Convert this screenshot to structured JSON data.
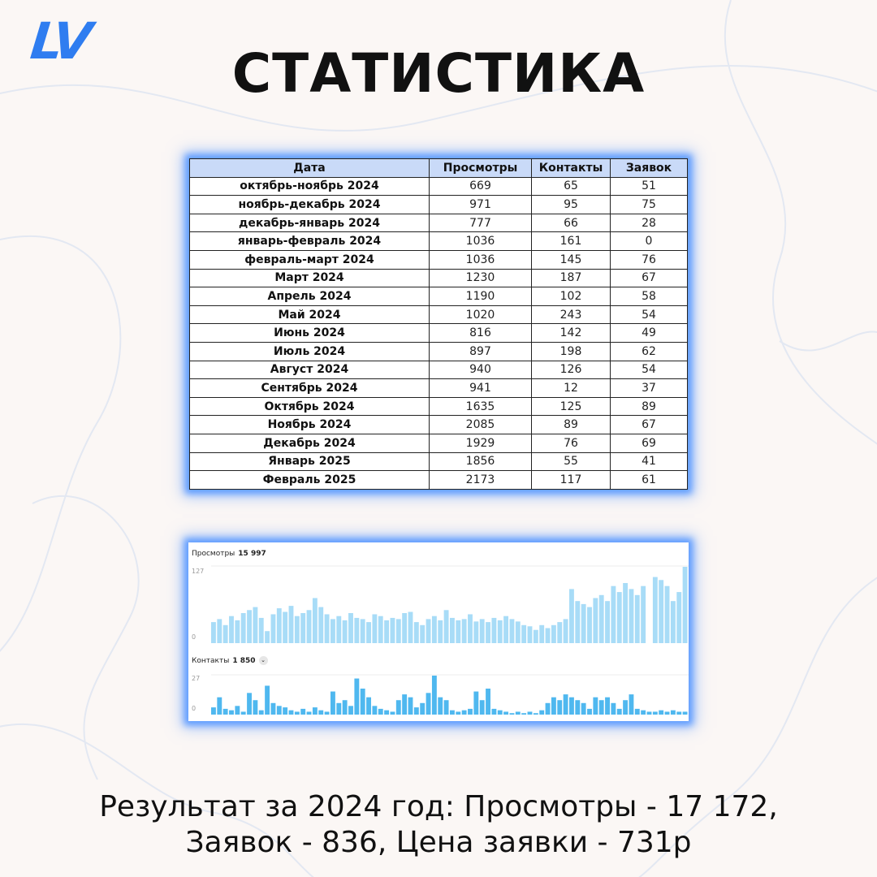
{
  "logo": "LV",
  "title": "СТАТИСТИКА",
  "table": {
    "headers": [
      "Дата",
      "Просмотры",
      "Контакты",
      "Заявок"
    ],
    "rows": [
      [
        "октябрь-ноябрь 2024",
        "669",
        "65",
        "51"
      ],
      [
        "ноябрь-декабрь 2024",
        "971",
        "95",
        "75"
      ],
      [
        "декабрь-январь 2024",
        "777",
        "66",
        "28"
      ],
      [
        "январь-февраль 2024",
        "1036",
        "161",
        "0"
      ],
      [
        "февраль-март 2024",
        "1036",
        "145",
        "76"
      ],
      [
        "Март 2024",
        "1230",
        "187",
        "67"
      ],
      [
        "Апрель 2024",
        "1190",
        "102",
        "58"
      ],
      [
        "Май 2024",
        "1020",
        "243",
        "54"
      ],
      [
        "Июнь 2024",
        "816",
        "142",
        "49"
      ],
      [
        "Июль 2024",
        "897",
        "198",
        "62"
      ],
      [
        "Август 2024",
        "940",
        "126",
        "54"
      ],
      [
        "Сентябрь 2024",
        "941",
        "12",
        "37"
      ],
      [
        "Октябрь 2024",
        "1635",
        "125",
        "89"
      ],
      [
        "Ноябрь 2024",
        "2085",
        "89",
        "67"
      ],
      [
        "Декабрь 2024",
        "1929",
        "76",
        "69"
      ],
      [
        "Январь 2025",
        "1856",
        "55",
        "41"
      ],
      [
        "Февраль 2025",
        "2173",
        "117",
        "61"
      ]
    ]
  },
  "chart_data": [
    {
      "type": "bar",
      "title": "Просмотры",
      "total": "15 997",
      "ytick_max": "127",
      "ytick_min": "0",
      "ylim": [
        0,
        127
      ],
      "color": "#a8dcf7",
      "values": [
        35,
        40,
        30,
        45,
        38,
        50,
        55,
        60,
        42,
        20,
        48,
        58,
        52,
        62,
        45,
        50,
        55,
        75,
        60,
        48,
        40,
        45,
        38,
        50,
        42,
        40,
        35,
        48,
        45,
        38,
        42,
        40,
        50,
        52,
        35,
        30,
        40,
        45,
        38,
        55,
        42,
        38,
        40,
        48,
        36,
        40,
        35,
        42,
        38,
        45,
        40,
        36,
        30,
        28,
        22,
        30,
        25,
        30,
        35,
        40,
        90,
        70,
        65,
        60,
        75,
        80,
        70,
        95,
        85,
        100,
        90,
        80,
        95,
        0,
        110,
        105,
        95,
        70,
        85,
        127
      ]
    },
    {
      "type": "bar",
      "title": "Контакты",
      "total": "1 850",
      "ytick_max": "27",
      "ytick_min": "0",
      "ylim": [
        0,
        27
      ],
      "color": "#4fb8ef",
      "values": [
        5,
        12,
        4,
        3,
        6,
        2,
        15,
        10,
        3,
        20,
        8,
        6,
        5,
        3,
        2,
        4,
        2,
        5,
        3,
        2,
        16,
        8,
        10,
        6,
        25,
        18,
        12,
        6,
        4,
        3,
        2,
        10,
        14,
        12,
        5,
        8,
        15,
        27,
        12,
        10,
        3,
        2,
        3,
        4,
        16,
        10,
        18,
        4,
        3,
        2,
        1,
        2,
        1,
        2,
        1,
        3,
        8,
        12,
        10,
        14,
        12,
        10,
        8,
        4,
        12,
        10,
        12,
        8,
        4,
        10,
        14,
        4,
        3,
        2,
        2,
        3,
        2,
        3,
        2,
        2
      ]
    }
  ],
  "summary": {
    "line1": "Результат за 2024 год: Просмотры - 17 172,",
    "line2": "Заявок - 836, Цена заявки - 731р"
  }
}
